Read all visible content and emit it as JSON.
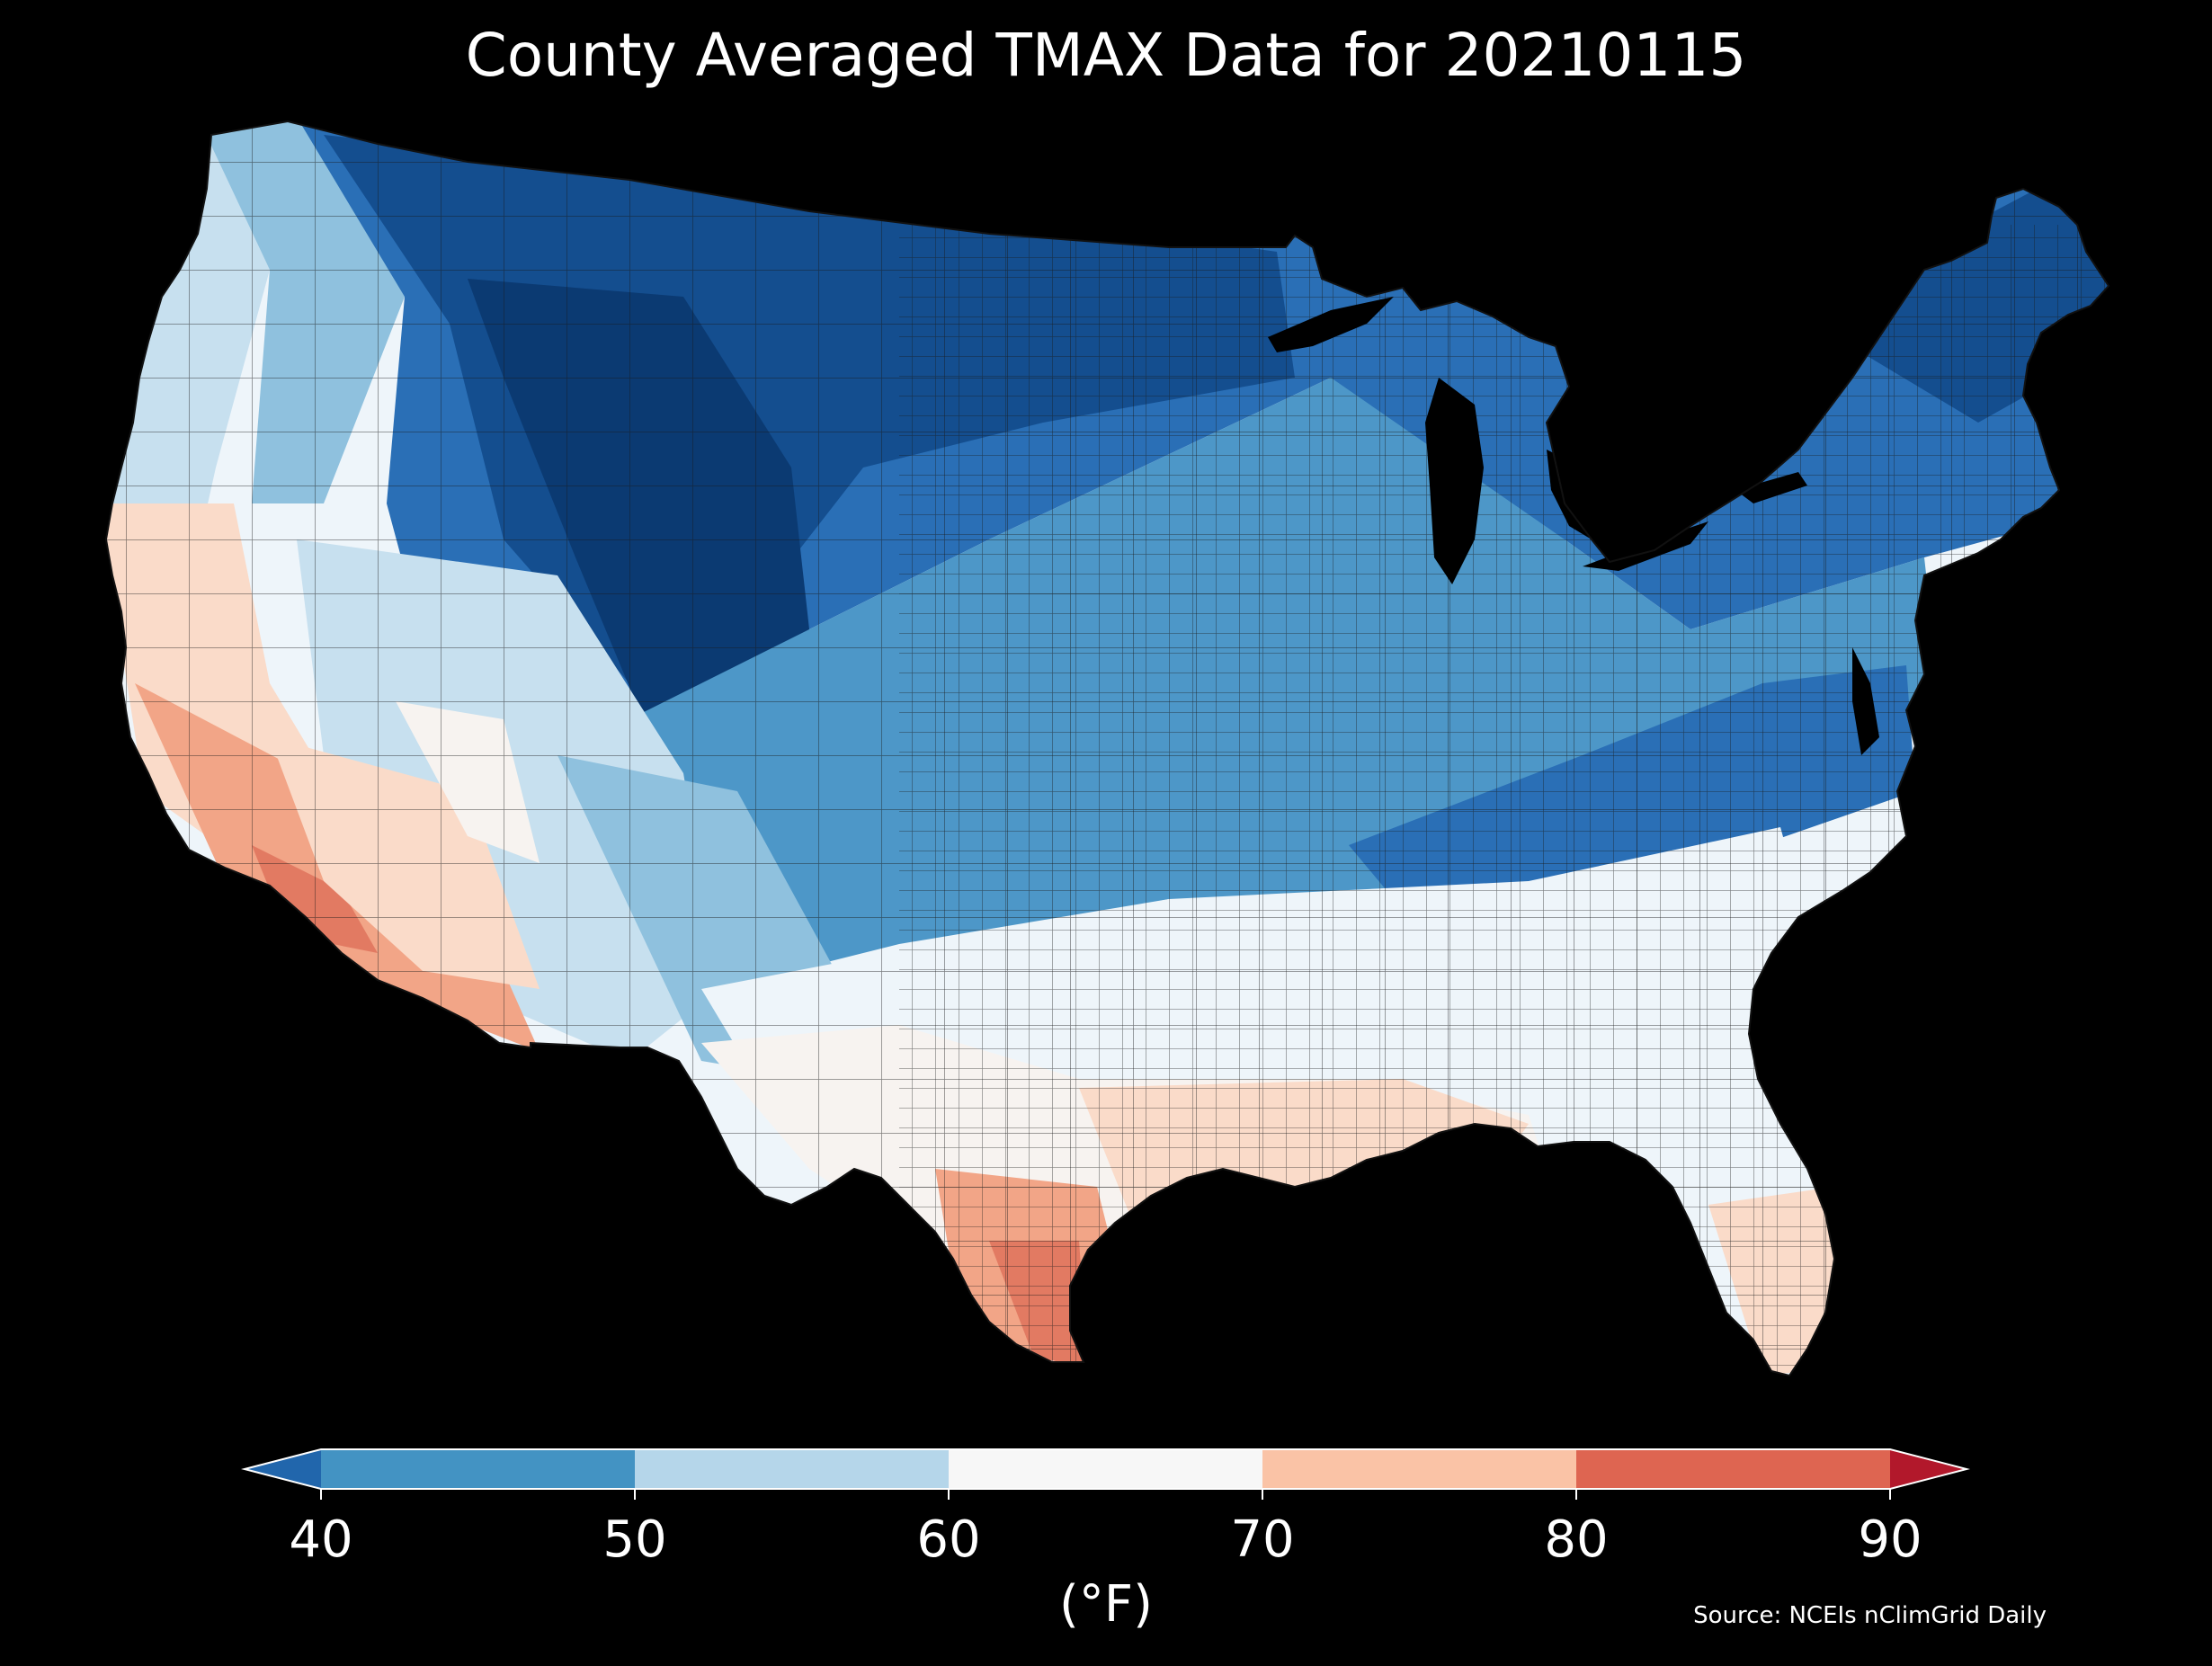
{
  "map": {
    "title": "County Averaged TMAX Data for 20210115",
    "region": "Contiguous United States",
    "unit_label": "(°F)",
    "source": "Source: NCEIs nClimGrid Daily",
    "colorbar": {
      "ticks": [
        "40",
        "50",
        "60",
        "70",
        "80",
        "90"
      ],
      "bins": [
        {
          "range": "<40",
          "color": "#2166ac"
        },
        {
          "range": "40-50",
          "color": "#4393c3"
        },
        {
          "range": "50-60",
          "color": "#b5d6ea"
        },
        {
          "range": "60-70",
          "color": "#f7f7f7"
        },
        {
          "range": "70-80",
          "color": "#fac3a6"
        },
        {
          "range": "80-90",
          "color": "#de6551"
        },
        {
          "range": ">90",
          "color": "#b2182b"
        }
      ]
    },
    "fill_levels": {
      "very_cold": "#0b3a72",
      "cold": "#144e8f",
      "cool": "#2a6fb6",
      "mild_cool": "#4d97c8",
      "light": "#8fc1de",
      "pale": "#c7e0ef",
      "near_white": "#eef5fa",
      "neutral": "#f7f3f0",
      "warm": "#fadbc9",
      "warmer": "#f2a587",
      "hot": "#e27a62"
    },
    "colors": {
      "background": "#000000",
      "text": "#ffffff",
      "county_border": "#1a1a1a"
    }
  }
}
